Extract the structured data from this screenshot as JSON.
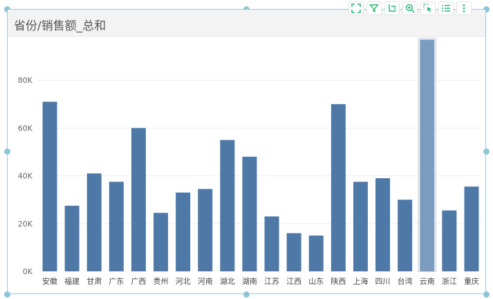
{
  "widget": {
    "title": "省份/销售额_总和",
    "colors": {
      "bar": "#4e79a7",
      "bar_selected": "#7b9bbf",
      "toolbar_icon": "#2bb673"
    },
    "toolbar": [
      {
        "name": "fullscreen-icon"
      },
      {
        "name": "filter-icon"
      },
      {
        "name": "drill-icon"
      },
      {
        "name": "zoom-in-icon"
      },
      {
        "name": "select-icon"
      },
      {
        "name": "list-icon"
      },
      {
        "name": "more-vertical-icon"
      }
    ]
  },
  "chart_data": {
    "type": "bar",
    "title": "省份/销售额_总和",
    "xlabel": "",
    "ylabel": "",
    "categories": [
      "安徽",
      "福建",
      "甘肃",
      "广东",
      "广西",
      "贵州",
      "河北",
      "河南",
      "湖北",
      "湖南",
      "江苏",
      "江西",
      "山东",
      "陕西",
      "上海",
      "四川",
      "台湾",
      "云南",
      "浙江",
      "重庆"
    ],
    "values": [
      71000,
      27500,
      41000,
      37500,
      60000,
      24500,
      33000,
      34500,
      55000,
      48000,
      23000,
      16000,
      15000,
      70000,
      37500,
      39000,
      30000,
      97000,
      25500,
      35500
    ],
    "selected_category": "云南",
    "ylim": [
      0,
      100000
    ],
    "yticks": [
      0,
      20000,
      40000,
      60000,
      80000
    ],
    "ytick_labels": [
      "0K",
      "20K",
      "40K",
      "60K",
      "80K"
    ],
    "grid": true,
    "legend": "none"
  }
}
